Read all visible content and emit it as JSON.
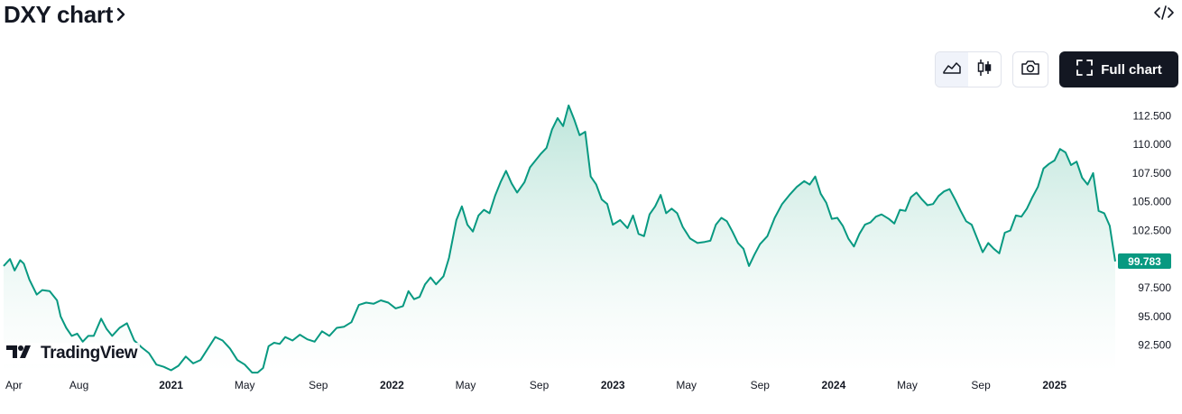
{
  "header": {
    "title": "DXY chart"
  },
  "toolbar": {
    "full_chart_label": "Full chart"
  },
  "logo": {
    "text": "TradingView"
  },
  "colors": {
    "line": "#089981",
    "fill_top": "#b5e2d6",
    "fill_bottom": "#ffffff",
    "badge": "#089981",
    "text": "#131722"
  },
  "icons": {
    "embed": "code-icon",
    "area": "area-chart-icon",
    "candles": "candlestick-icon",
    "camera": "camera-icon",
    "fullscreen": "fullscreen-icon",
    "chevron": "chevron-right-icon"
  },
  "chart_data": {
    "type": "area",
    "title": "DXY chart",
    "symbol": "DXY",
    "last_value": 99.783,
    "last_value_label": "99.783",
    "ylim": [
      90.5,
      114.1
    ],
    "y_ticks": [
      92.5,
      95.0,
      97.5,
      100.0,
      102.5,
      105.0,
      107.5,
      110.0,
      112.5
    ],
    "y_tick_labels": [
      "92.500",
      "95.000",
      "97.500",
      "",
      "102.500",
      "105.000",
      "107.500",
      "110.000",
      "112.500"
    ],
    "x_ticks": [
      {
        "label": "Apr",
        "t": 0.0,
        "bold": false
      },
      {
        "label": "Aug",
        "t": 4.0,
        "bold": false
      },
      {
        "label": "2021",
        "t": 9.0,
        "bold": true
      },
      {
        "label": "May",
        "t": 13.0,
        "bold": false
      },
      {
        "label": "Sep",
        "t": 17.0,
        "bold": false
      },
      {
        "label": "2022",
        "t": 21.0,
        "bold": true
      },
      {
        "label": "May",
        "t": 25.0,
        "bold": false
      },
      {
        "label": "Sep",
        "t": 29.0,
        "bold": false
      },
      {
        "label": "2023",
        "t": 33.0,
        "bold": true
      },
      {
        "label": "May",
        "t": 37.0,
        "bold": false
      },
      {
        "label": "Sep",
        "t": 41.0,
        "bold": false
      },
      {
        "label": "2024",
        "t": 45.0,
        "bold": true
      },
      {
        "label": "May",
        "t": 49.0,
        "bold": false
      },
      {
        "label": "Sep",
        "t": 53.0,
        "bold": false
      },
      {
        "label": "2025",
        "t": 57.0,
        "bold": true
      }
    ],
    "x_range": [
      -0.1,
      60.3
    ],
    "series": [
      {
        "points": [
          [
            -0.1,
            99.4
          ],
          [
            0.25,
            100.0
          ],
          [
            0.5,
            99.0
          ],
          [
            0.8,
            99.9
          ],
          [
            1.0,
            99.6
          ],
          [
            1.3,
            98.2
          ],
          [
            1.7,
            96.9
          ],
          [
            2.0,
            97.3
          ],
          [
            2.4,
            97.2
          ],
          [
            2.8,
            96.4
          ],
          [
            3.0,
            95.0
          ],
          [
            3.3,
            94.0
          ],
          [
            3.6,
            93.3
          ],
          [
            3.9,
            93.5
          ],
          [
            4.2,
            92.8
          ],
          [
            4.5,
            93.3
          ],
          [
            4.8,
            93.3
          ],
          [
            5.2,
            94.8
          ],
          [
            5.5,
            93.9
          ],
          [
            5.8,
            93.3
          ],
          [
            6.2,
            94.0
          ],
          [
            6.6,
            94.4
          ],
          [
            7.0,
            92.9
          ],
          [
            7.4,
            92.3
          ],
          [
            7.8,
            91.8
          ],
          [
            8.2,
            90.8
          ],
          [
            8.6,
            90.6
          ],
          [
            9.0,
            90.3
          ],
          [
            9.4,
            90.7
          ],
          [
            9.8,
            91.5
          ],
          [
            10.2,
            90.9
          ],
          [
            10.6,
            91.2
          ],
          [
            11.0,
            92.2
          ],
          [
            11.4,
            93.2
          ],
          [
            11.8,
            92.9
          ],
          [
            12.2,
            92.2
          ],
          [
            12.6,
            91.2
          ],
          [
            13.0,
            90.8
          ],
          [
            13.4,
            90.1
          ],
          [
            13.7,
            90.1
          ],
          [
            14.0,
            90.5
          ],
          [
            14.3,
            92.4
          ],
          [
            14.6,
            92.7
          ],
          [
            14.9,
            92.6
          ],
          [
            15.2,
            93.2
          ],
          [
            15.6,
            92.9
          ],
          [
            16.0,
            93.4
          ],
          [
            16.4,
            93.0
          ],
          [
            16.8,
            92.8
          ],
          [
            17.2,
            93.7
          ],
          [
            17.6,
            93.3
          ],
          [
            18.0,
            94.0
          ],
          [
            18.4,
            94.1
          ],
          [
            18.8,
            94.5
          ],
          [
            19.2,
            96.0
          ],
          [
            19.6,
            96.2
          ],
          [
            20.0,
            96.1
          ],
          [
            20.4,
            96.4
          ],
          [
            20.8,
            96.2
          ],
          [
            21.2,
            95.7
          ],
          [
            21.6,
            95.9
          ],
          [
            21.9,
            97.2
          ],
          [
            22.2,
            96.5
          ],
          [
            22.5,
            96.7
          ],
          [
            22.8,
            97.8
          ],
          [
            23.1,
            98.4
          ],
          [
            23.4,
            97.8
          ],
          [
            23.8,
            98.5
          ],
          [
            24.1,
            100.1
          ],
          [
            24.5,
            103.4
          ],
          [
            24.8,
            104.6
          ],
          [
            25.1,
            103.0
          ],
          [
            25.4,
            102.4
          ],
          [
            25.7,
            103.8
          ],
          [
            26.0,
            104.3
          ],
          [
            26.3,
            104.0
          ],
          [
            26.6,
            105.5
          ],
          [
            26.9,
            106.7
          ],
          [
            27.2,
            107.7
          ],
          [
            27.5,
            106.6
          ],
          [
            27.8,
            105.8
          ],
          [
            28.2,
            106.7
          ],
          [
            28.5,
            108.0
          ],
          [
            28.8,
            108.6
          ],
          [
            29.1,
            109.2
          ],
          [
            29.4,
            109.7
          ],
          [
            29.7,
            111.3
          ],
          [
            30.0,
            112.3
          ],
          [
            30.3,
            111.6
          ],
          [
            30.6,
            113.4
          ],
          [
            30.9,
            112.2
          ],
          [
            31.2,
            110.8
          ],
          [
            31.5,
            111.1
          ],
          [
            31.8,
            107.2
          ],
          [
            32.1,
            106.5
          ],
          [
            32.4,
            105.2
          ],
          [
            32.7,
            104.8
          ],
          [
            33.0,
            103.0
          ],
          [
            33.4,
            103.4
          ],
          [
            33.8,
            102.7
          ],
          [
            34.1,
            103.8
          ],
          [
            34.4,
            102.2
          ],
          [
            34.7,
            102.0
          ],
          [
            35.0,
            103.9
          ],
          [
            35.3,
            104.6
          ],
          [
            35.6,
            105.6
          ],
          [
            35.9,
            104.0
          ],
          [
            36.2,
            104.4
          ],
          [
            36.5,
            104.0
          ],
          [
            36.8,
            102.8
          ],
          [
            37.2,
            101.8
          ],
          [
            37.6,
            101.4
          ],
          [
            38.0,
            101.5
          ],
          [
            38.3,
            101.6
          ],
          [
            38.6,
            103.0
          ],
          [
            38.9,
            103.6
          ],
          [
            39.2,
            103.3
          ],
          [
            39.5,
            102.4
          ],
          [
            39.8,
            101.4
          ],
          [
            40.1,
            100.9
          ],
          [
            40.4,
            99.4
          ],
          [
            40.7,
            100.4
          ],
          [
            41.0,
            101.3
          ],
          [
            41.4,
            102.0
          ],
          [
            41.8,
            103.6
          ],
          [
            42.2,
            104.8
          ],
          [
            42.6,
            105.6
          ],
          [
            43.0,
            106.3
          ],
          [
            43.4,
            106.8
          ],
          [
            43.7,
            106.5
          ],
          [
            44.0,
            107.2
          ],
          [
            44.3,
            105.7
          ],
          [
            44.6,
            104.9
          ],
          [
            44.9,
            103.5
          ],
          [
            45.2,
            103.6
          ],
          [
            45.5,
            102.9
          ],
          [
            45.8,
            101.8
          ],
          [
            46.1,
            101.1
          ],
          [
            46.4,
            102.2
          ],
          [
            46.7,
            103.0
          ],
          [
            47.0,
            103.2
          ],
          [
            47.3,
            103.7
          ],
          [
            47.6,
            103.9
          ],
          [
            48.0,
            103.5
          ],
          [
            48.3,
            103.1
          ],
          [
            48.6,
            104.3
          ],
          [
            48.9,
            104.2
          ],
          [
            49.2,
            105.4
          ],
          [
            49.5,
            105.8
          ],
          [
            49.8,
            105.2
          ],
          [
            50.1,
            104.7
          ],
          [
            50.4,
            104.8
          ],
          [
            50.7,
            105.5
          ],
          [
            51.0,
            105.9
          ],
          [
            51.3,
            106.1
          ],
          [
            51.6,
            105.2
          ],
          [
            51.9,
            104.2
          ],
          [
            52.2,
            103.3
          ],
          [
            52.5,
            103.0
          ],
          [
            52.8,
            101.8
          ],
          [
            53.1,
            100.6
          ],
          [
            53.4,
            101.4
          ],
          [
            53.7,
            100.9
          ],
          [
            54.0,
            100.5
          ],
          [
            54.3,
            102.3
          ],
          [
            54.6,
            102.5
          ],
          [
            54.9,
            103.8
          ],
          [
            55.2,
            103.7
          ],
          [
            55.5,
            104.4
          ],
          [
            55.8,
            105.4
          ],
          [
            56.1,
            106.3
          ],
          [
            56.4,
            107.9
          ],
          [
            56.7,
            108.3
          ],
          [
            57.0,
            108.6
          ],
          [
            57.3,
            109.6
          ],
          [
            57.6,
            109.3
          ],
          [
            57.9,
            108.2
          ],
          [
            58.2,
            108.5
          ],
          [
            58.5,
            107.1
          ],
          [
            58.8,
            106.5
          ],
          [
            59.1,
            107.5
          ],
          [
            59.4,
            104.2
          ],
          [
            59.7,
            104.0
          ],
          [
            60.0,
            102.9
          ],
          [
            60.3,
            99.8
          ]
        ]
      }
    ],
    "grid": false,
    "legend": "none"
  }
}
